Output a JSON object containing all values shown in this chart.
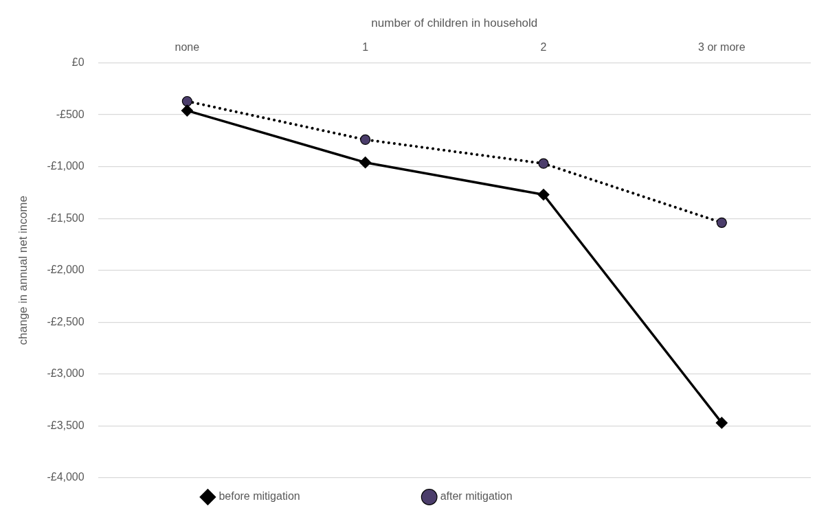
{
  "chart_data": {
    "type": "line",
    "xlabel": "number of children in household",
    "ylabel": "change in annual net income",
    "categories": [
      "none",
      "1",
      "2",
      "3 or more"
    ],
    "series": [
      {
        "name": "before mitigation",
        "color": "#000000",
        "values": [
          -460,
          -960,
          -1270,
          -3470
        ],
        "marker": "diamond",
        "line_style": "solid"
      },
      {
        "name": "after mitigation",
        "color": "#4b3d6b",
        "values": [
          -370,
          -740,
          -970,
          -1540
        ],
        "marker": "circle",
        "line_style": "dotted"
      }
    ],
    "ylim": [
      -4000,
      0
    ],
    "yticks": [
      {
        "value": 0,
        "label": "£0"
      },
      {
        "value": -500,
        "label": "-£500"
      },
      {
        "value": -1000,
        "label": "-£1,000"
      },
      {
        "value": -1500,
        "label": "-£1,500"
      },
      {
        "value": -2000,
        "label": "-£2,000"
      },
      {
        "value": -2500,
        "label": "-£2,500"
      },
      {
        "value": -3000,
        "label": "-£3,000"
      },
      {
        "value": -3500,
        "label": "-£3,500"
      },
      {
        "value": -4000,
        "label": "-£4,000"
      }
    ],
    "grid": "y",
    "legend": "bottom"
  }
}
